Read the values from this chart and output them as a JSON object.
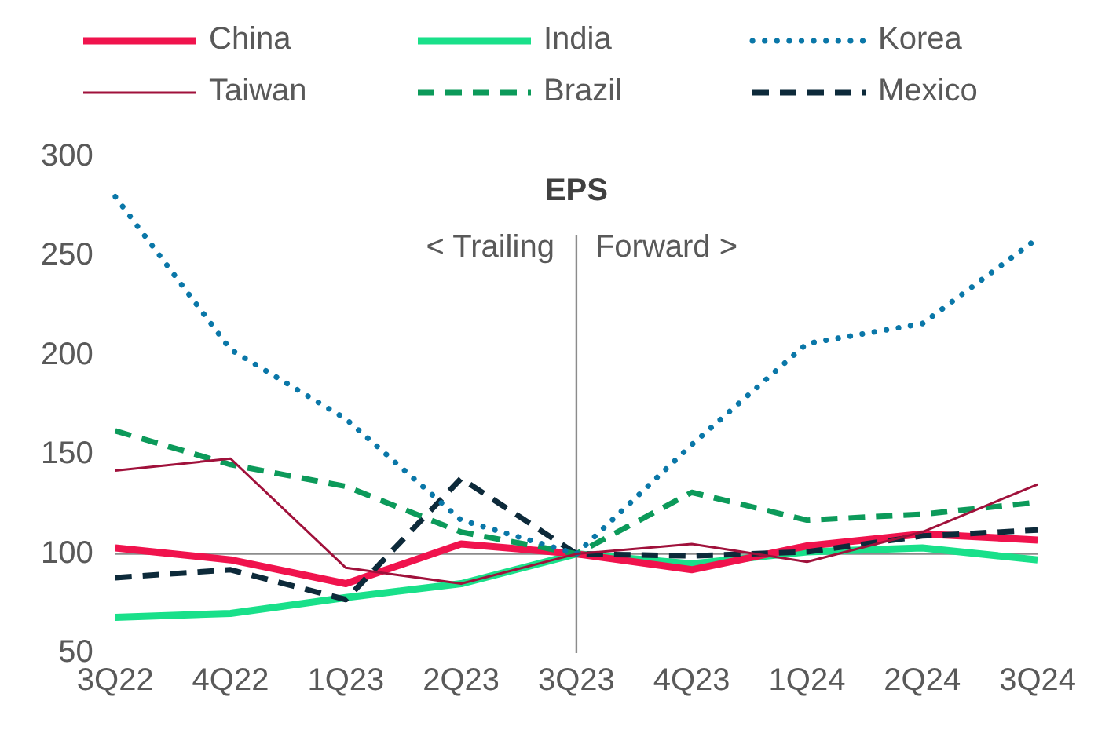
{
  "chart_data": {
    "type": "line",
    "title": "EPS",
    "categories": [
      "3Q22",
      "4Q22",
      "1Q23",
      "2Q23",
      "3Q23",
      "4Q23",
      "1Q24",
      "2Q24",
      "3Q24"
    ],
    "series": [
      {
        "name": "China",
        "color": "#f0134d",
        "line_style": "solid",
        "values": [
          103,
          97,
          85,
          105,
          100,
          92,
          104,
          110,
          107
        ]
      },
      {
        "name": "India",
        "color": "#19e08a",
        "line_style": "solid",
        "values": [
          68,
          70,
          78,
          85,
          100,
          95,
          101,
          103,
          97
        ]
      },
      {
        "name": "Korea",
        "color": "#0a77a8",
        "line_style": "dotted",
        "values": [
          280,
          203,
          168,
          117,
          100,
          155,
          206,
          216,
          259
        ]
      },
      {
        "name": "Taiwan",
        "color": "#a0113b",
        "line_style": "solid",
        "values": [
          142,
          148,
          93,
          85,
          100,
          105,
          96,
          111,
          135
        ]
      },
      {
        "name": "Brazil",
        "color": "#0c9a5a",
        "line_style": "dashed",
        "values": [
          162,
          145,
          134,
          111,
          100,
          131,
          117,
          120,
          126
        ]
      },
      {
        "name": "Mexico",
        "color": "#0d2a3a",
        "line_style": "dashed",
        "values": [
          88,
          92,
          77,
          138,
          100,
          99,
          101,
          109,
          112
        ]
      }
    ],
    "ylim": [
      50,
      300
    ],
    "yticks": [
      50,
      100,
      150,
      200,
      250,
      300
    ],
    "grid": false,
    "legend": "top",
    "marker": "none",
    "ref_lines": [
      {
        "axis": "x",
        "value": "3Q23",
        "color": "#8c8c8c"
      },
      {
        "axis": "y",
        "value": 100,
        "color": "#8c8c8c"
      }
    ],
    "annotations": [
      "< Trailing",
      "Forward >"
    ]
  }
}
